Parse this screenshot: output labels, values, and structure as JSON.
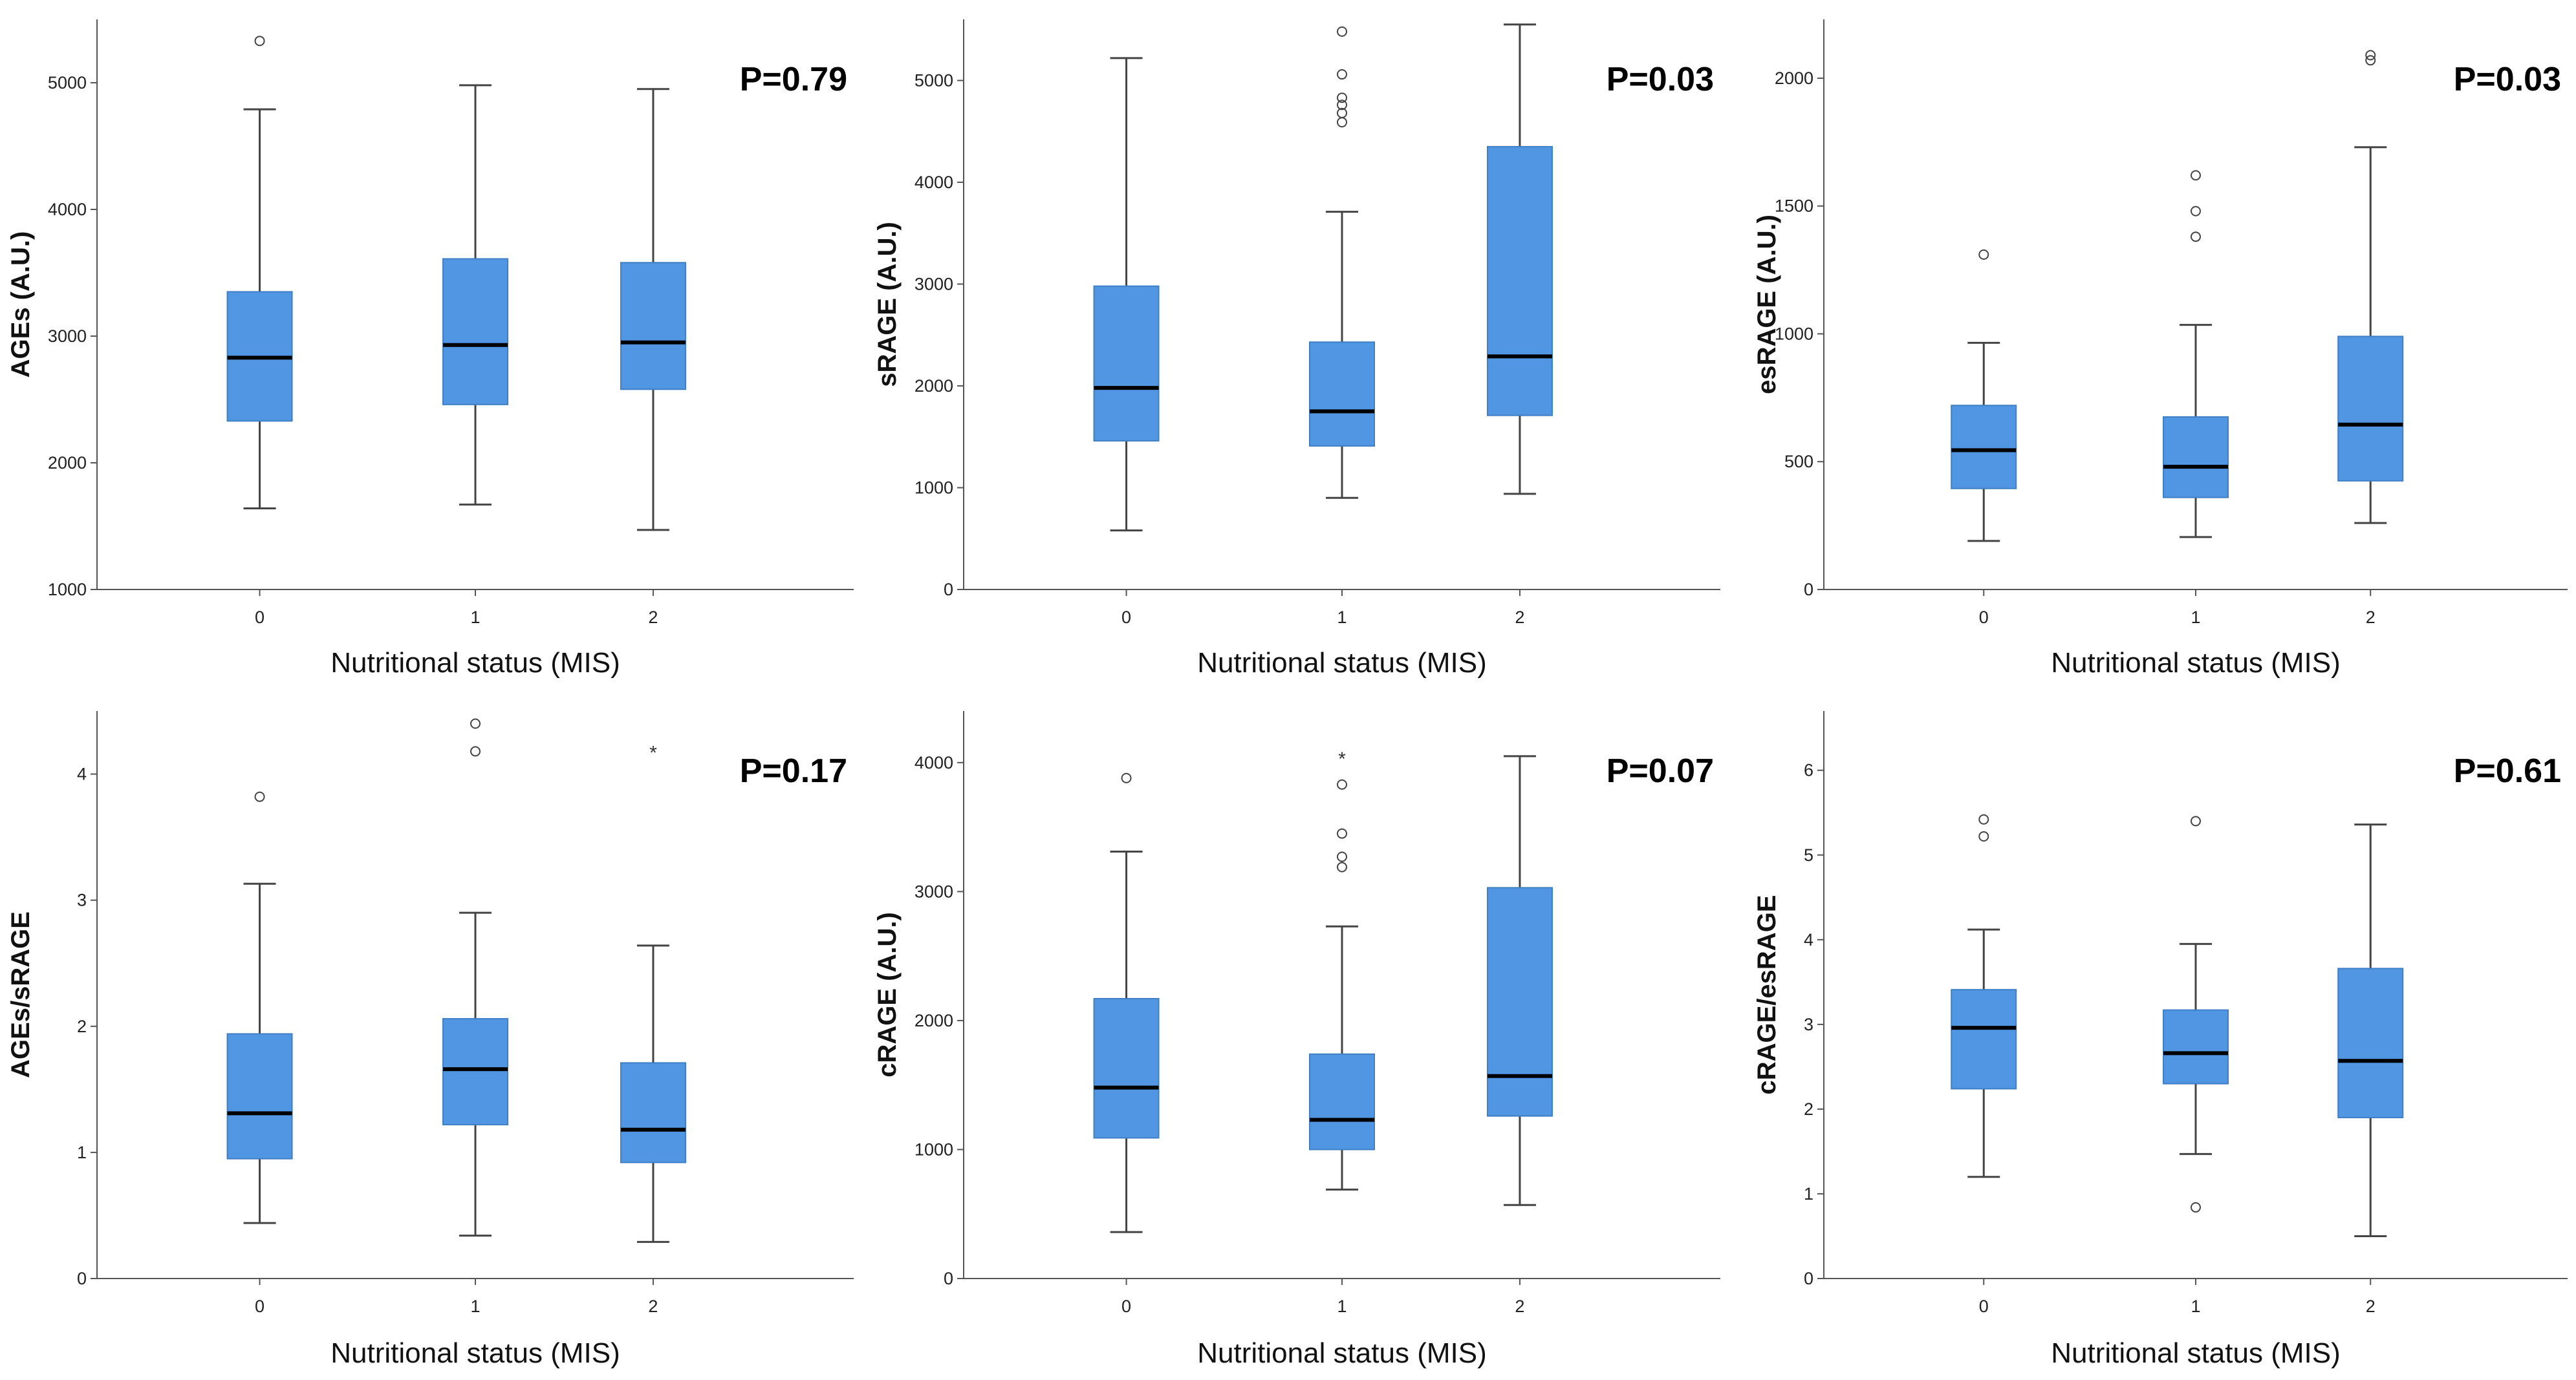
{
  "colors": {
    "box_fill": "#5196e2",
    "box_edge": "#3f7fc4",
    "median": "#000000",
    "whisker": "#444444",
    "axis": "#555555"
  },
  "chart_data": [
    {
      "type": "box",
      "panel": "top-left",
      "xlabel": "Nutritional status (MIS)",
      "ylabel": "AGEs (A.U.)",
      "categories": [
        "0",
        "1",
        "2"
      ],
      "ylim": [
        1000,
        5500
      ],
      "yticks": [
        1000,
        2000,
        3000,
        4000,
        5000
      ],
      "annotation": "P=0.79",
      "boxes": [
        {
          "min": 1640,
          "q1": 2330,
          "median": 2830,
          "q3": 3350,
          "max": 4790,
          "outliers": [
            5330
          ],
          "extremes": []
        },
        {
          "min": 1670,
          "q1": 2460,
          "median": 2930,
          "q3": 3610,
          "max": 4980,
          "outliers": [],
          "extremes": []
        },
        {
          "min": 1470,
          "q1": 2580,
          "median": 2950,
          "q3": 3580,
          "max": 4950,
          "outliers": [],
          "extremes": []
        }
      ]
    },
    {
      "type": "box",
      "panel": "top-middle",
      "xlabel": "Nutritional status (MIS)",
      "ylabel": "sRAGE (A.U.)",
      "categories": [
        "0",
        "1",
        "2"
      ],
      "ylim": [
        0,
        5600
      ],
      "yticks": [
        0,
        1000,
        2000,
        3000,
        4000,
        5000
      ],
      "annotation": "P=0.03",
      "boxes": [
        {
          "min": 580,
          "q1": 1460,
          "median": 1980,
          "q3": 2980,
          "max": 5220,
          "outliers": [],
          "extremes": []
        },
        {
          "min": 900,
          "q1": 1410,
          "median": 1750,
          "q3": 2430,
          "max": 3710,
          "outliers": [
            4590,
            4680,
            4760,
            4830,
            5060,
            5480
          ],
          "extremes": []
        },
        {
          "min": 940,
          "q1": 1710,
          "median": 2290,
          "q3": 4350,
          "max": 5550,
          "outliers": [],
          "extremes": []
        }
      ]
    },
    {
      "type": "box",
      "panel": "top-right",
      "xlabel": "Nutritional status (MIS)",
      "ylabel": "esRAGE (A.U.)",
      "categories": [
        "0",
        "1",
        "2"
      ],
      "ylim": [
        0,
        2230
      ],
      "yticks": [
        0,
        500,
        1000,
        1500,
        2000
      ],
      "annotation": "P=0.03",
      "boxes": [
        {
          "min": 190,
          "q1": 395,
          "median": 545,
          "q3": 720,
          "max": 965,
          "outliers": [
            1310
          ],
          "extremes": []
        },
        {
          "min": 205,
          "q1": 360,
          "median": 480,
          "q3": 675,
          "max": 1035,
          "outliers": [
            1380,
            1480,
            1620
          ],
          "extremes": []
        },
        {
          "min": 260,
          "q1": 425,
          "median": 645,
          "q3": 990,
          "max": 1730,
          "outliers": [
            2070,
            2090
          ],
          "extremes": []
        }
      ]
    },
    {
      "type": "box",
      "panel": "bottom-left",
      "xlabel": "Nutritional status (MIS)",
      "ylabel": "AGEs/sRAGE",
      "categories": [
        "0",
        "1",
        "2"
      ],
      "ylim": [
        0,
        4.5
      ],
      "yticks": [
        0,
        1,
        2,
        3,
        4
      ],
      "annotation": "P=0.17",
      "boxes": [
        {
          "min": 0.44,
          "q1": 0.95,
          "median": 1.31,
          "q3": 1.94,
          "max": 3.13,
          "outliers": [
            3.82
          ],
          "extremes": []
        },
        {
          "min": 0.34,
          "q1": 1.22,
          "median": 1.66,
          "q3": 2.06,
          "max": 2.9,
          "outliers": [
            4.18,
            4.4
          ],
          "extremes": []
        },
        {
          "min": 0.29,
          "q1": 0.92,
          "median": 1.18,
          "q3": 1.71,
          "max": 2.64,
          "outliers": [],
          "extremes": [
            4.18
          ]
        }
      ]
    },
    {
      "type": "box",
      "panel": "bottom-middle",
      "xlabel": "Nutritional status (MIS)",
      "ylabel": "cRAGE (A.U.)",
      "categories": [
        "0",
        "1",
        "2"
      ],
      "ylim": [
        0,
        4400
      ],
      "yticks": [
        0,
        1000,
        2000,
        3000,
        4000
      ],
      "annotation": "P=0.07",
      "boxes": [
        {
          "min": 360,
          "q1": 1090,
          "median": 1480,
          "q3": 2170,
          "max": 3310,
          "outliers": [
            3880
          ],
          "extremes": []
        },
        {
          "min": 690,
          "q1": 1000,
          "median": 1230,
          "q3": 1740,
          "max": 2730,
          "outliers": [
            3190,
            3270,
            3450,
            3830
          ],
          "extremes": [
            4040
          ]
        },
        {
          "min": 570,
          "q1": 1260,
          "median": 1570,
          "q3": 3030,
          "max": 4050,
          "outliers": [],
          "extremes": []
        }
      ]
    },
    {
      "type": "box",
      "panel": "bottom-right",
      "xlabel": "Nutritional status (MIS)",
      "ylabel": "cRAGE/esRAGE",
      "categories": [
        "0",
        "1",
        "2"
      ],
      "ylim": [
        0,
        6.7
      ],
      "yticks": [
        0,
        1,
        2,
        3,
        4,
        5,
        6
      ],
      "annotation": "P=0.61",
      "boxes": [
        {
          "min": 1.2,
          "q1": 2.24,
          "median": 2.96,
          "q3": 3.41,
          "max": 4.12,
          "outliers": [
            5.22,
            5.42
          ],
          "extremes": []
        },
        {
          "min": 1.47,
          "q1": 2.3,
          "median": 2.66,
          "q3": 3.17,
          "max": 3.95,
          "outliers": [
            0.84,
            5.4
          ],
          "extremes": []
        },
        {
          "min": 0.5,
          "q1": 1.9,
          "median": 2.57,
          "q3": 3.66,
          "max": 5.36,
          "outliers": [],
          "extremes": []
        }
      ]
    }
  ]
}
